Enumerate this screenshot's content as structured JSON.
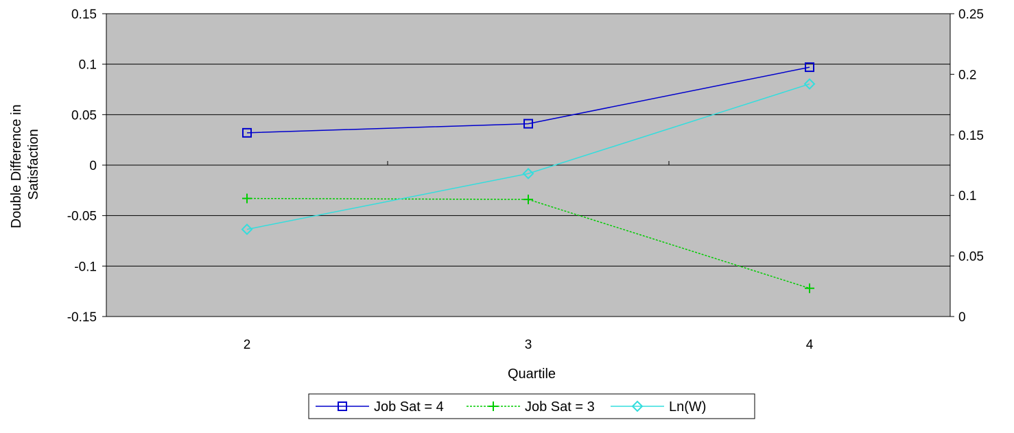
{
  "chart_data": {
    "type": "line",
    "title": "",
    "xlabel": "Quartile",
    "ylabel": "Double Difference in Satisfaction",
    "ylabel_lines": [
      "Double Difference in",
      "Satisfaction"
    ],
    "ylabel_right": "",
    "categories": [
      "2",
      "3",
      "4"
    ],
    "x_minor_tick_positions": [
      2.5,
      3.5
    ],
    "ylim_left": [
      -0.15,
      0.15
    ],
    "yticks_left": [
      -0.15,
      -0.1,
      -0.05,
      0,
      0.05,
      0.1,
      0.15
    ],
    "ytick_labels_left": [
      "-0.15",
      "-0.1",
      "-0.05",
      "0",
      "0.05",
      "0.1",
      "0.15"
    ],
    "ylim_right": [
      0,
      0.25
    ],
    "yticks_right": [
      0,
      0.05,
      0.1,
      0.15,
      0.2,
      0.25
    ],
    "ytick_labels_right": [
      "0",
      "0.05",
      "0.1",
      "0.15",
      "0.2",
      "0.25"
    ],
    "grid": true,
    "plot_background": "#c0c0c0",
    "legend_position": "bottom",
    "series": [
      {
        "name": "Job Sat = 4",
        "axis": "left",
        "color": "#0000cc",
        "marker": "square",
        "dashed": false,
        "values": [
          0.032,
          0.041,
          0.097
        ]
      },
      {
        "name": "Job Sat = 3",
        "axis": "left",
        "color": "#00cc00",
        "marker": "plus",
        "dashed": true,
        "values": [
          -0.033,
          -0.034,
          -0.122
        ]
      },
      {
        "name": "Ln(W)",
        "axis": "right",
        "color": "#33dddd",
        "marker": "diamond",
        "dashed": false,
        "values": [
          0.072,
          0.118,
          0.192
        ]
      }
    ]
  }
}
